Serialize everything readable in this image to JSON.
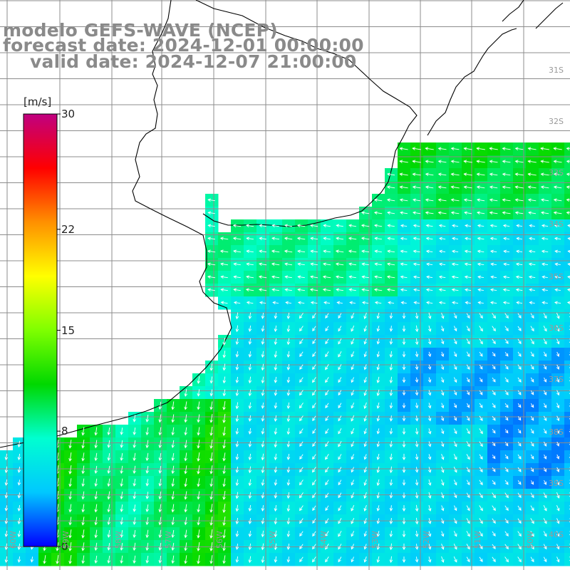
{
  "title": {
    "line1": "modelo GEFS-WAVE (NCEP)",
    "line2": "forecast date: 2024-12-01 00:00:00",
    "line3": "valid date: 2024-12-07 21:00:00"
  },
  "colorbar": {
    "unit": "[m/s]",
    "min": 0,
    "max": 30,
    "ticks": [
      {
        "value": 30,
        "label": "30"
      },
      {
        "value": 22,
        "label": "22"
      },
      {
        "value": 15,
        "label": "15"
      },
      {
        "value": 8,
        "label": "8"
      },
      {
        "value": 0,
        "label": "0"
      }
    ],
    "gradient": [
      "#0000ff",
      "#00c8ff",
      "#00ffd0",
      "#00d800",
      "#7fff00",
      "#ffff00",
      "#ff9000",
      "#ff0000",
      "#c00080"
    ]
  },
  "lat_labels": [
    "31S",
    "32S",
    "33S",
    "34S",
    "35S",
    "36S",
    "37S",
    "38S",
    "39S",
    "40S"
  ],
  "lon_labels": [
    "60W",
    "59W",
    "58W",
    "57W",
    "56W",
    "55W",
    "54W",
    "53W",
    "52W",
    "51W",
    "50W"
  ],
  "colors": {
    "land": "#ffffff",
    "grid": "#8c8c8c",
    "coast": "#000000",
    "arrows": "#ffffff",
    "title": "#8a8a8a"
  }
}
